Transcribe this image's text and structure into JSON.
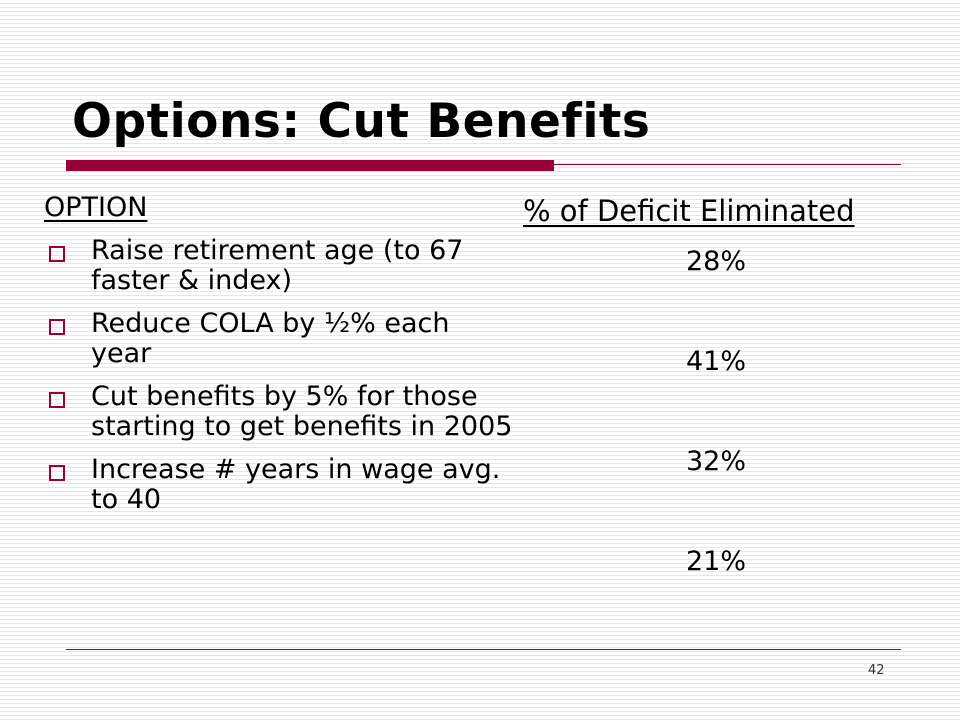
{
  "slide": {
    "title": "Options:  Cut Benefits",
    "option_header": "OPTION",
    "column_header": "% of Deficit Eliminated",
    "options": [
      {
        "label": "Raise retirement age (to 67 faster & index)",
        "value": "28%"
      },
      {
        "label": "Reduce COLA by ½% each year",
        "value": "41%"
      },
      {
        "label": "Cut benefits by 5% for those starting to get benefits in 2005",
        "value": "32%"
      },
      {
        "label": "Increase # years in wage avg. to 40",
        "value": "21%"
      }
    ],
    "page_number": "42"
  },
  "colors": {
    "accent": "#99003a",
    "stripe": "#e6e6e6"
  },
  "icons": {
    "bullet": "hollow-square-icon"
  }
}
